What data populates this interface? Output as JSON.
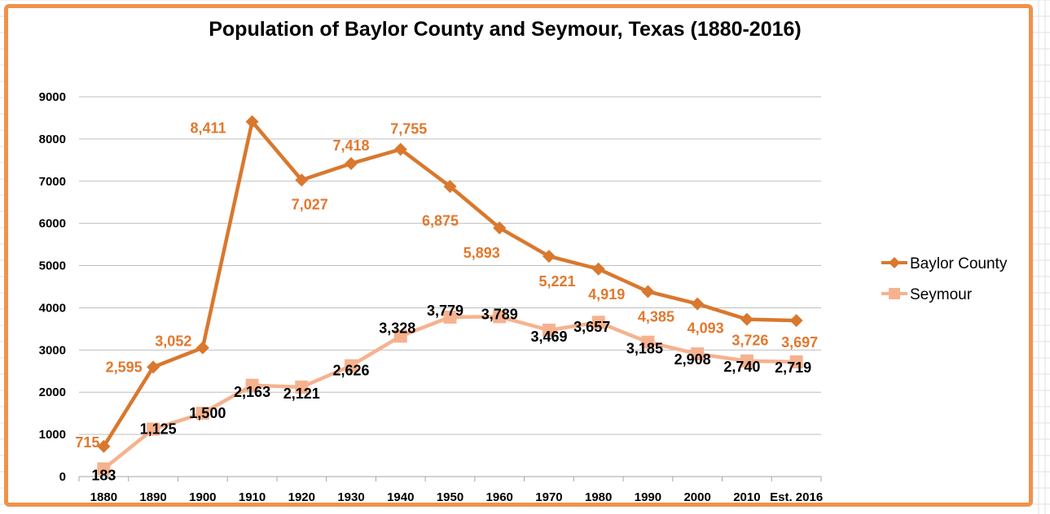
{
  "colors": {
    "frame": "#F0924A",
    "baylor_line": "#D9782E",
    "baylor_labels": "#E2782D",
    "seymour_line": "#F6B28F",
    "seymour_labels": "#000000",
    "gridlines": "#BFBFBF",
    "sheet_grid": "#E2E2E2"
  },
  "chart_data": {
    "type": "line",
    "title": "Population of Baylor County and Seymour, Texas (1880-2016)",
    "xlabel": "",
    "ylabel": "",
    "categories": [
      "1880",
      "1890",
      "1900",
      "1910",
      "1920",
      "1930",
      "1940",
      "1950",
      "1960",
      "1970",
      "1980",
      "1990",
      "2000",
      "2010",
      "Est. 2016"
    ],
    "ylim": [
      0,
      9000
    ],
    "yticks": [
      "0",
      "1000",
      "2000",
      "3000",
      "4000",
      "5000",
      "6000",
      "7000",
      "8000",
      "9000"
    ],
    "grid": true,
    "legend_position": "right",
    "series": [
      {
        "name": "Baylor County",
        "marker": "diamond",
        "values": [
          715,
          2595,
          3052,
          8411,
          7027,
          7418,
          7755,
          6875,
          5893,
          5221,
          4919,
          4385,
          4093,
          3726,
          3697
        ],
        "labels": [
          "715",
          "2,595",
          "3,052",
          "8,411",
          "7,027",
          "7,418",
          "7,755",
          "6,875",
          "5,893",
          "5,221",
          "4,919",
          "4,385",
          "4,093",
          "3,726",
          "3,697"
        ]
      },
      {
        "name": "Seymour",
        "marker": "square",
        "values": [
          183,
          1125,
          1500,
          2163,
          2121,
          2626,
          3328,
          3779,
          3789,
          3469,
          3657,
          3185,
          2908,
          2740,
          2719
        ],
        "labels": [
          "183",
          "1,125",
          "1,500",
          "2,163",
          "2,121",
          "2,626",
          "3,328",
          "3,779",
          "3,789",
          "3,469",
          "3,657",
          "3,185",
          "2,908",
          "2,740",
          "2,719"
        ]
      }
    ]
  }
}
